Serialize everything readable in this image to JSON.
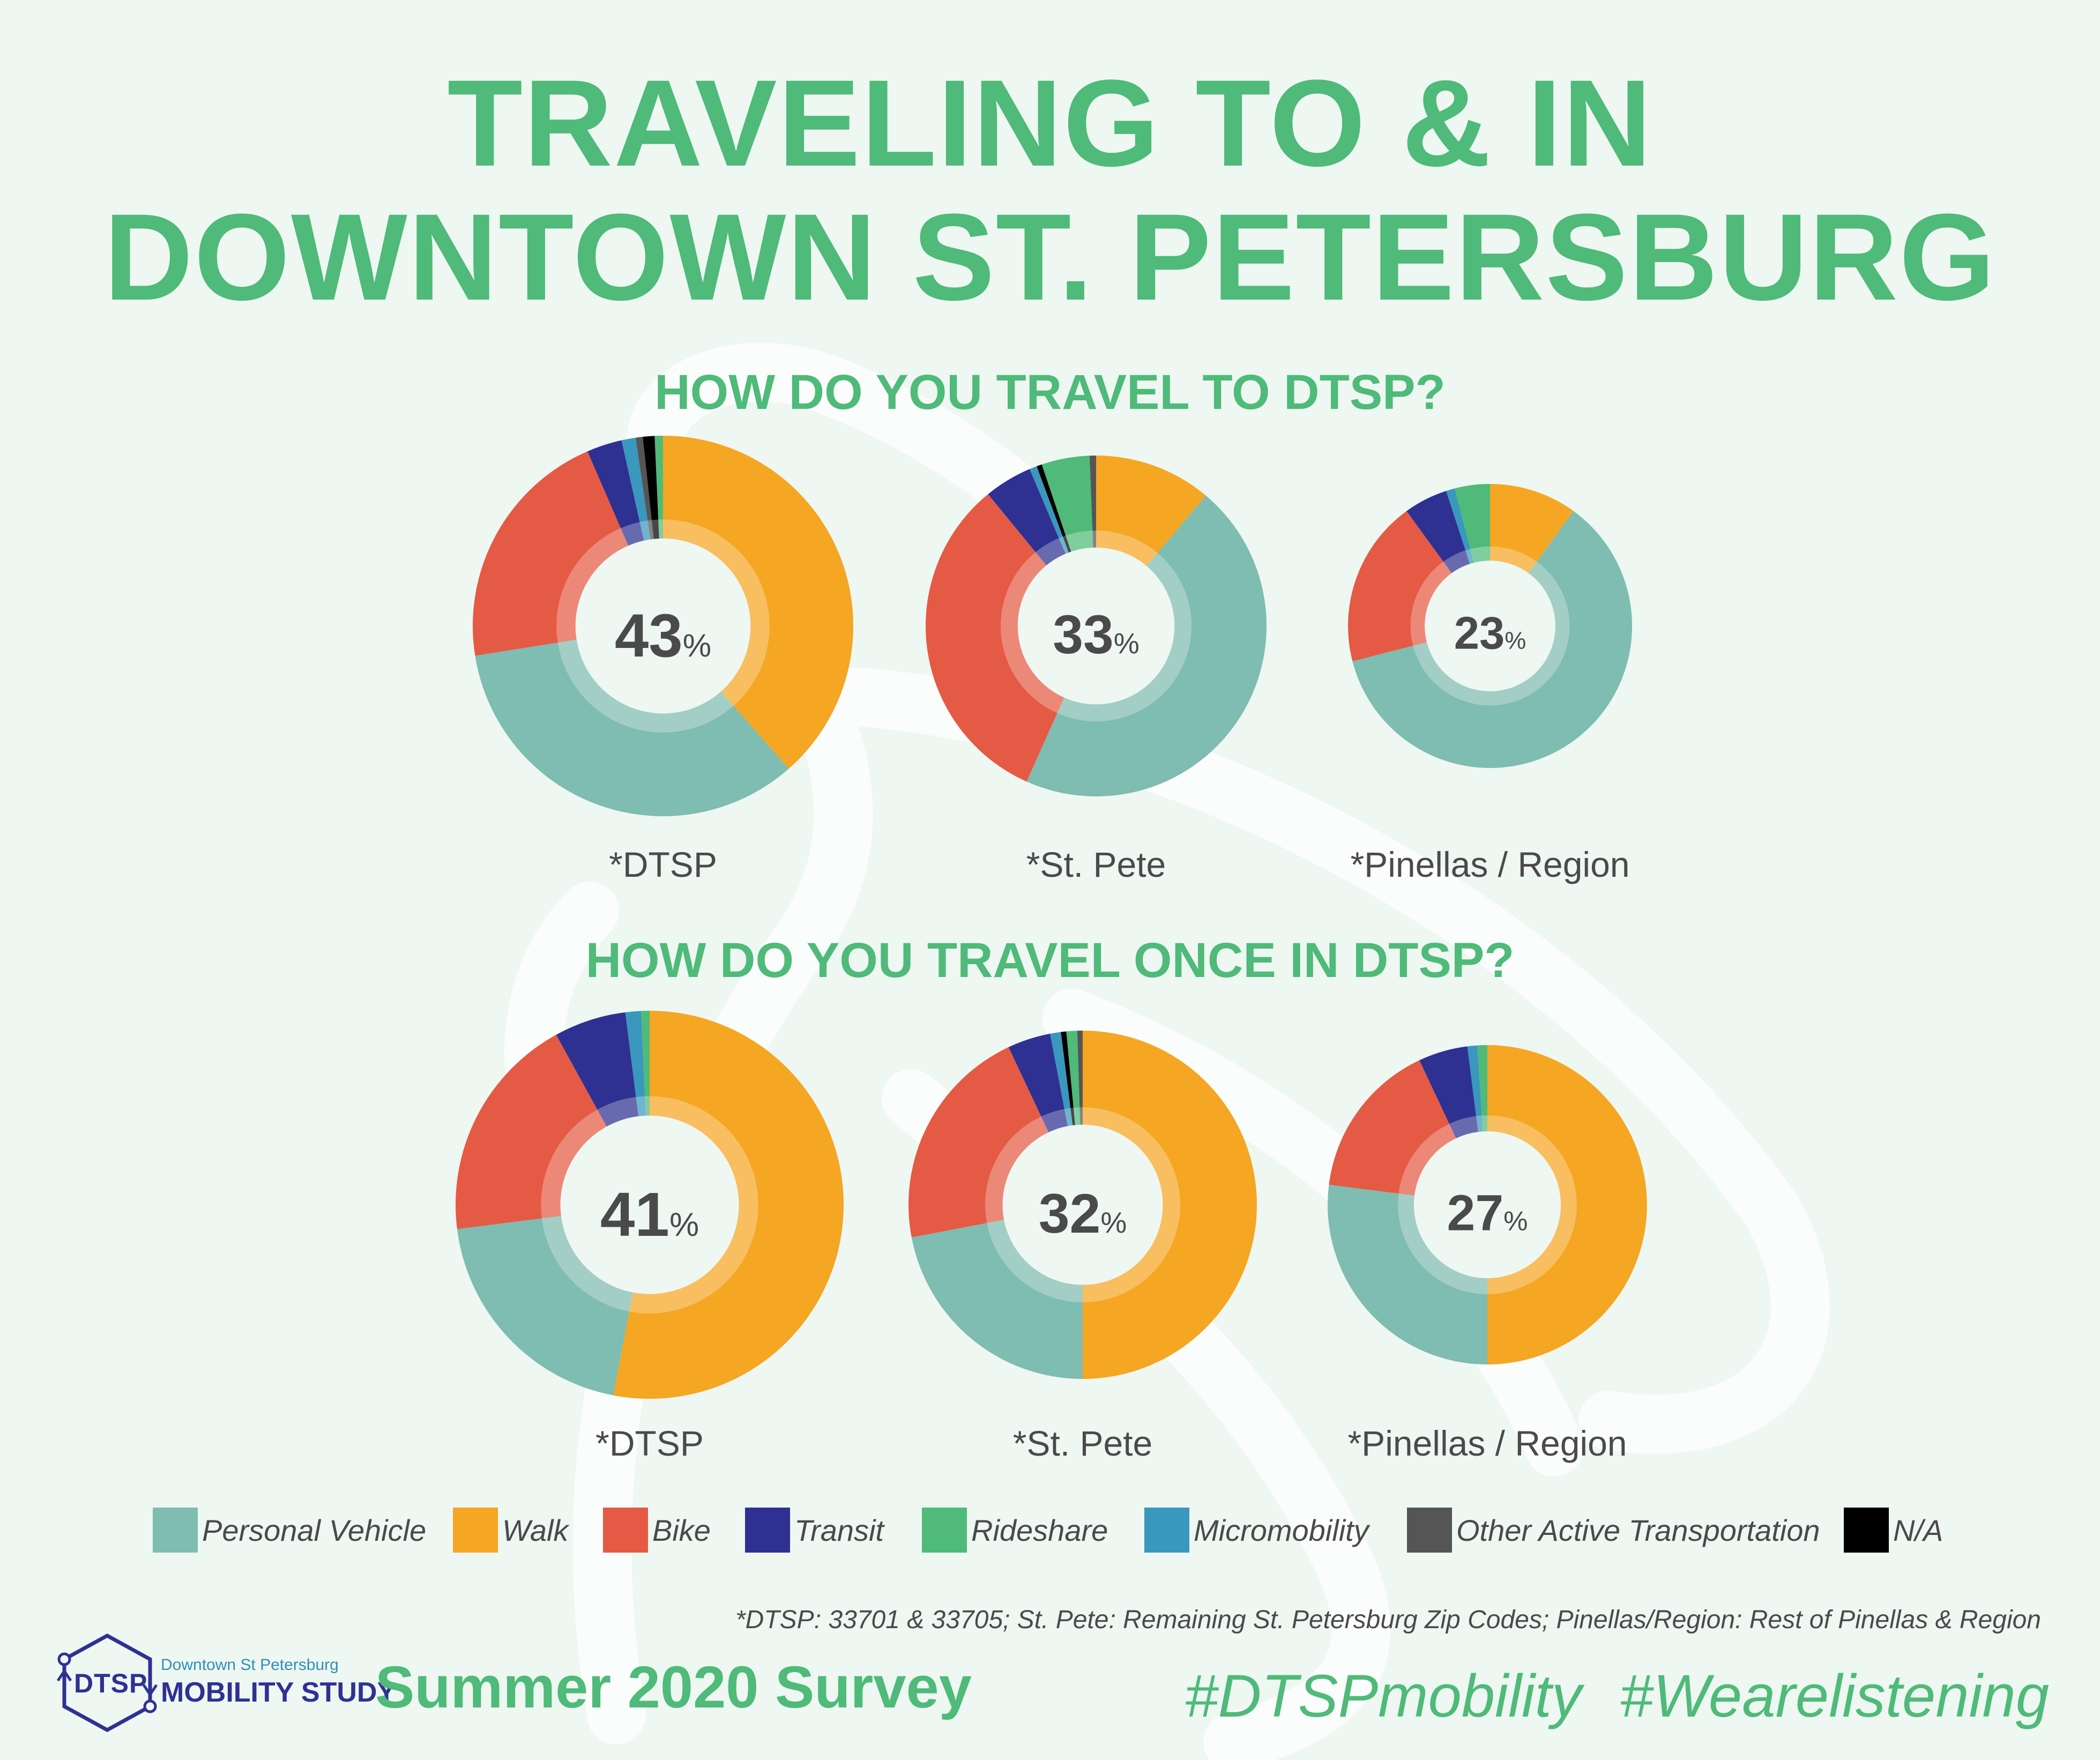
{
  "title_line1": "TRAVELING TO & IN",
  "title_line2": "DOWNTOWN ST. PETERSBURG",
  "colors": {
    "Personal Vehicle": "#7fbcb1",
    "Walk": "#f5a623",
    "Bike": "#e55a45",
    "Transit": "#2e3192",
    "Rideshare": "#4fba79",
    "Micromobility": "#3a97bd",
    "Other Active Transportation": "#555555",
    "N/A": "#000000"
  },
  "chart_data": [
    {
      "type": "pie",
      "group": "HOW DO YOU TRAVEL TO DTSP?",
      "label": "*DTSP",
      "center_value": "43",
      "center_unit": "%",
      "slices": [
        {
          "name": "Walk",
          "value": 38.5
        },
        {
          "name": "Personal Vehicle",
          "value": 34.0
        },
        {
          "name": "Bike",
          "value": 21.0
        },
        {
          "name": "Transit",
          "value": 3.0
        },
        {
          "name": "Micromobility",
          "value": 1.2
        },
        {
          "name": "Other Active Transportation",
          "value": 0.6
        },
        {
          "name": "N/A",
          "value": 1.0
        },
        {
          "name": "Rideshare",
          "value": 0.7
        }
      ]
    },
    {
      "type": "pie",
      "group": "HOW DO YOU TRAVEL TO DTSP?",
      "label": "*St. Pete",
      "center_value": "33",
      "center_unit": "%",
      "slices": [
        {
          "name": "Walk",
          "value": 11.0
        },
        {
          "name": "Personal Vehicle",
          "value": 45.0
        },
        {
          "name": "Bike",
          "value": 32.0
        },
        {
          "name": "Transit",
          "value": 4.5
        },
        {
          "name": "Micromobility",
          "value": 0.7
        },
        {
          "name": "N/A",
          "value": 0.5
        },
        {
          "name": "Rideshare",
          "value": 4.5
        },
        {
          "name": "Other Active Transportation",
          "value": 0.6
        }
      ]
    },
    {
      "type": "pie",
      "group": "HOW DO YOU TRAVEL TO DTSP?",
      "label": "*Pinellas / Region",
      "center_value": "23",
      "center_unit": "%",
      "slices": [
        {
          "name": "Walk",
          "value": 10.0
        },
        {
          "name": "Personal Vehicle",
          "value": 61.0
        },
        {
          "name": "Bike",
          "value": 19.0
        },
        {
          "name": "Transit",
          "value": 5.0
        },
        {
          "name": "Micromobility",
          "value": 1.0
        },
        {
          "name": "Rideshare",
          "value": 4.0
        }
      ]
    },
    {
      "type": "pie",
      "group": "HOW DO YOU TRAVEL ONCE IN DTSP?",
      "label": "*DTSP",
      "center_value": "41",
      "center_unit": "%",
      "slices": [
        {
          "name": "Walk",
          "value": 53.0
        },
        {
          "name": "Personal Vehicle",
          "value": 20.0
        },
        {
          "name": "Bike",
          "value": 19.0
        },
        {
          "name": "Transit",
          "value": 6.0
        },
        {
          "name": "Micromobility",
          "value": 1.3
        },
        {
          "name": "Rideshare",
          "value": 0.7
        }
      ]
    },
    {
      "type": "pie",
      "group": "HOW DO YOU TRAVEL ONCE IN DTSP?",
      "label": "*St. Pete",
      "center_value": "32",
      "center_unit": "%",
      "slices": [
        {
          "name": "Walk",
          "value": 50.0
        },
        {
          "name": "Personal Vehicle",
          "value": 22.0
        },
        {
          "name": "Bike",
          "value": 21.0
        },
        {
          "name": "Transit",
          "value": 4.0
        },
        {
          "name": "Micromobility",
          "value": 1.0
        },
        {
          "name": "N/A",
          "value": 0.5
        },
        {
          "name": "Rideshare",
          "value": 1.0
        },
        {
          "name": "Other Active Transportation",
          "value": 0.5
        }
      ]
    },
    {
      "type": "pie",
      "group": "HOW DO YOU TRAVEL ONCE IN DTSP?",
      "label": "*Pinellas / Region",
      "center_value": "27",
      "center_unit": "%",
      "slices": [
        {
          "name": "Walk",
          "value": 50.0
        },
        {
          "name": "Personal Vehicle",
          "value": 27.0
        },
        {
          "name": "Bike",
          "value": 16.0
        },
        {
          "name": "Transit",
          "value": 5.0
        },
        {
          "name": "Micromobility",
          "value": 1.0
        },
        {
          "name": "Rideshare",
          "value": 1.0
        }
      ]
    }
  ],
  "legend": [
    "Personal Vehicle",
    "Walk",
    "Bike",
    "Transit",
    "Rideshare",
    "Micromobility",
    "Other Active Transportation",
    "N/A"
  ],
  "footnote": "*DTSP: 33701 & 33705; St. Pete: Remaining St. Petersburg Zip Codes; Pinellas/Region: Rest of Pinellas & Region",
  "survey": "Summer 2020 Survey",
  "hashtags": "#DTSPmobility #Wearelistening",
  "logo": {
    "abbr": "DTSP",
    "small_text": "Downtown St Petersburg",
    "big_text": "MOBILITY STUDY"
  }
}
